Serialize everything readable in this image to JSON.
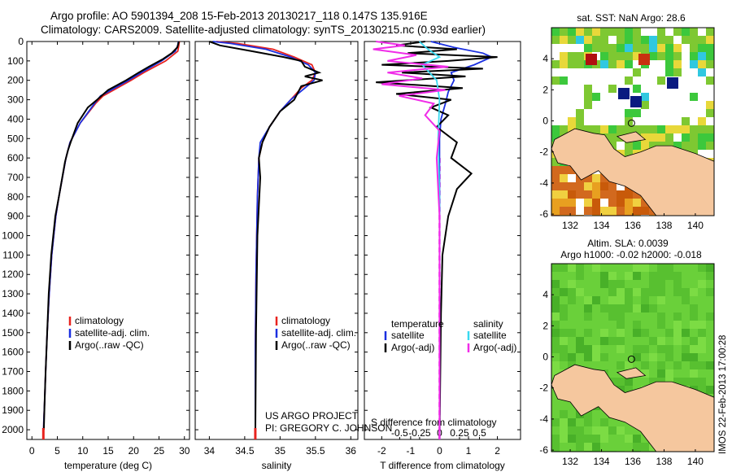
{
  "title": {
    "line1": "Argo profile: AO 5901394_208 15-Feb-2013 20130217_118 0.147S 135.916E",
    "line2": "Climatology: CARS2009. Satellite-adjusted climatology: synTS_20130215.nc (0.93d earlier)"
  },
  "credit": {
    "line1": "US ARGO PROJECT",
    "line2": "PI: GREGORY C. JOHNSON"
  },
  "stamp": "IMOS 22-Feb-2013 17:00:28",
  "colors": {
    "climatology": "#e8231e",
    "satellite": "#1a2fe0",
    "argo": "#000000",
    "satellite_s": "#39d9f0",
    "argo_s": "#f02ce8",
    "land": "#f5c79e"
  },
  "chart_data": [
    {
      "id": "temperature",
      "type": "line",
      "xlabel": "temperature (deg C)",
      "ylabel": "",
      "xlim": [
        -1,
        31
      ],
      "ylim": [
        2050,
        0
      ],
      "xticks": [
        0,
        5,
        10,
        15,
        20,
        25,
        30
      ],
      "yticks": [
        0,
        100,
        200,
        300,
        400,
        500,
        600,
        700,
        800,
        900,
        1000,
        1100,
        1200,
        1300,
        1400,
        1500,
        1600,
        1700,
        1800,
        1900,
        2000
      ],
      "legend": [
        "climatology",
        "satellite-adj. clim.",
        "Argo(..raw -QC)"
      ],
      "series": [
        {
          "name": "climatology",
          "color_key": "climatology",
          "x": [
            29,
            28.9,
            28.7,
            26.3,
            22,
            19.5,
            14,
            12.5,
            9.5,
            7.5,
            6.7,
            5.3,
            4.7,
            3.9,
            3.4,
            3.0,
            2.7,
            2.5,
            2.35,
            2.25
          ],
          "y": [
            0,
            20,
            50,
            100,
            160,
            200,
            280,
            320,
            420,
            520,
            600,
            800,
            900,
            1100,
            1300,
            1500,
            1700,
            1850,
            1950,
            2050
          ]
        },
        {
          "name": "satellite-adj. clim.",
          "color_key": "satellite",
          "x": [
            28.8,
            28.7,
            28.2,
            25.5,
            21.5,
            19,
            13.5,
            12.3,
            9.5,
            7.5,
            6.7,
            5.3,
            4.7,
            3.9,
            3.4,
            3.0,
            2.7,
            2.5,
            2.35,
            2.25
          ],
          "y": [
            0,
            20,
            50,
            100,
            160,
            200,
            280,
            320,
            420,
            520,
            600,
            800,
            900,
            1100,
            1300,
            1500,
            1700,
            1850,
            1950,
            2050
          ]
        },
        {
          "name": "Argo(..raw -QC)",
          "color_key": "argo",
          "x": [
            28.9,
            28.6,
            27.5,
            25.8,
            23,
            21,
            18.5,
            15,
            12.8,
            11,
            9,
            7.6,
            7.1,
            6.5,
            5.3,
            4.6,
            3.8,
            3.3,
            3.0,
            2.7,
            2.5,
            2.35
          ],
          "y": [
            0,
            30,
            60,
            90,
            130,
            160,
            200,
            250,
            300,
            340,
            420,
            520,
            560,
            620,
            800,
            900,
            1100,
            1300,
            1500,
            1700,
            1850,
            2000
          ]
        }
      ]
    },
    {
      "id": "salinity",
      "type": "line",
      "xlabel": "salinity",
      "ylabel": "",
      "xlim": [
        33.8,
        36.1
      ],
      "ylim": [
        2050,
        0
      ],
      "xticks": [
        34,
        34.5,
        35,
        35.5,
        36
      ],
      "xticklabels": [
        "34",
        "34.5",
        "35",
        "35.5",
        "36"
      ],
      "legend": [
        "climatology",
        "satellite-adj. clim.",
        "Argo(..raw -QC)"
      ],
      "series": [
        {
          "name": "climatology",
          "color_key": "climatology",
          "x": [
            34.1,
            34.4,
            34.9,
            35.2,
            35.45,
            35.5,
            35.45,
            35.3,
            35.15,
            35.0,
            34.85,
            34.75,
            34.7,
            34.68,
            34.66,
            34.65,
            34.65
          ],
          "y": [
            0,
            10,
            40,
            80,
            120,
            160,
            200,
            240,
            300,
            360,
            440,
            520,
            600,
            800,
            1200,
            1600,
            2050
          ]
        },
        {
          "name": "satellite-adj. clim.",
          "color_key": "satellite",
          "x": [
            34.05,
            34.3,
            34.8,
            35.15,
            35.4,
            35.5,
            35.48,
            35.35,
            35.15,
            35.0,
            34.85,
            34.72,
            34.7,
            34.68,
            34.66,
            34.65,
            34.65
          ],
          "y": [
            0,
            10,
            40,
            80,
            120,
            160,
            200,
            240,
            300,
            360,
            440,
            520,
            600,
            800,
            1200,
            1600,
            2050
          ]
        },
        {
          "name": "Argo(..raw -QC)",
          "color_key": "argo",
          "x": [
            34.0,
            34.15,
            34.6,
            35.05,
            35.3,
            35.35,
            35.55,
            35.35,
            35.6,
            35.3,
            35.2,
            35.0,
            34.85,
            34.75,
            34.7,
            34.72,
            34.68,
            34.66,
            34.65
          ],
          "y": [
            0,
            20,
            50,
            80,
            100,
            130,
            160,
            180,
            200,
            230,
            300,
            360,
            440,
            520,
            600,
            700,
            1000,
            1500,
            2050
          ]
        }
      ]
    },
    {
      "id": "difference",
      "type": "line",
      "xlabel": "T difference from climatology",
      "xlabel2": "S difference from climatology",
      "xlim": [
        -2.6,
        2.8
      ],
      "ylim": [
        2050,
        0
      ],
      "xticks": [
        -2,
        -1,
        0,
        1,
        2
      ],
      "xticklabels": [
        "-2",
        "-1",
        "0",
        "1",
        "2"
      ],
      "xticks2": [
        -0.5,
        -0.25,
        0,
        0.25,
        0.5
      ],
      "xticklabels2": [
        "-0.5",
        "-0.25",
        "0",
        "0.25",
        "0.5"
      ],
      "legend_t": {
        "header": "temperature",
        "items": [
          "satellite",
          "Argo(-adj)"
        ]
      },
      "legend_s": {
        "header": "salinity",
        "items": [
          "satellite",
          "Argo(-adj)"
        ]
      },
      "series": [
        {
          "name": "satellite",
          "group": "temperature",
          "color_key": "satellite",
          "x": [
            -0.3,
            0.5,
            1.5,
            1.8,
            1.2,
            0.4,
            0.5,
            0.3,
            0.2,
            0.05,
            0.0,
            0.0,
            0.0
          ],
          "y": [
            0,
            30,
            60,
            80,
            120,
            160,
            200,
            260,
            320,
            400,
            500,
            700,
            2050
          ]
        },
        {
          "name": "Argo(-adj)",
          "group": "temperature",
          "color_key": "argo",
          "x": [
            -0.5,
            -1.5,
            0.6,
            -1.1,
            2.0,
            0.3,
            -2.0,
            1.5,
            -1.3,
            0.9,
            -2.2,
            0.8,
            -1.5,
            0.4,
            -0.3,
            0.3,
            -0.1,
            0.6,
            0.4,
            1.1,
            0.6,
            0.3,
            0.1,
            0.05,
            0.0
          ],
          "y": [
            0,
            20,
            40,
            60,
            80,
            100,
            120,
            140,
            160,
            180,
            210,
            240,
            270,
            300,
            340,
            380,
            440,
            520,
            600,
            680,
            760,
            900,
            1100,
            1400,
            2050
          ]
        },
        {
          "name": "satellite",
          "group": "salinity",
          "color_key": "satellite_s",
          "x": [
            -0.7,
            -0.4,
            0.0,
            -0.6,
            -0.1,
            0.0,
            -0.05,
            0.0,
            0.0
          ],
          "y": [
            0,
            40,
            80,
            120,
            200,
            300,
            500,
            800,
            2050
          ]
        },
        {
          "name": "Argo(-adj)",
          "group": "salinity",
          "color_key": "argo_s",
          "x": [
            -2.2,
            -1.2,
            -2.3,
            -0.8,
            -1.8,
            0.3,
            -1.8,
            -0.6,
            -2.0,
            0.2,
            -1.4,
            -0.2,
            -0.5,
            0.0,
            -0.1,
            0.0,
            0.0
          ],
          "y": [
            0,
            20,
            40,
            70,
            100,
            130,
            160,
            190,
            220,
            250,
            280,
            320,
            380,
            460,
            600,
            900,
            2050
          ]
        }
      ]
    },
    {
      "id": "sst_map",
      "type": "heatmap",
      "title": "sat. SST: NaN Argo: 28.6",
      "xlim": [
        130.8,
        141.2
      ],
      "ylim": [
        -6.1,
        6.0
      ],
      "xticks": [
        132,
        134,
        136,
        138,
        140
      ],
      "yticks": [
        -6,
        -4,
        -2,
        0,
        2,
        4
      ],
      "argo_position": [
        135.916,
        -0.147
      ]
    },
    {
      "id": "sla_map",
      "type": "heatmap",
      "title": "Altim. SLA: 0.0039",
      "subtitle": "Argo h1000: -0.02 h2000: -0.018",
      "xlim": [
        130.8,
        141.2
      ],
      "ylim": [
        -6.1,
        6.0
      ],
      "xticks": [
        132,
        134,
        136,
        138,
        140
      ],
      "yticks": [
        -6,
        -4,
        -2,
        0,
        2,
        4
      ],
      "argo_position": [
        135.916,
        -0.147
      ]
    }
  ]
}
